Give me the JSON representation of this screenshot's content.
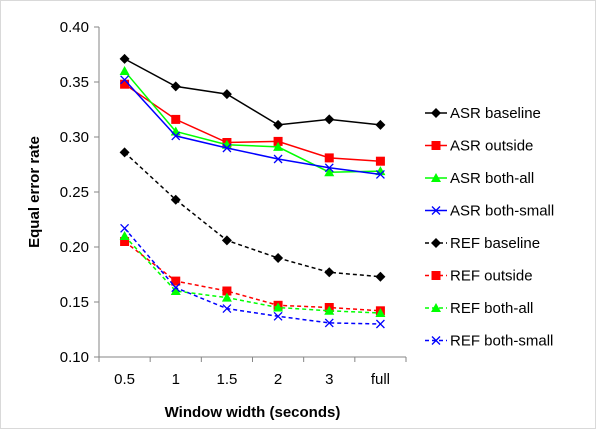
{
  "chart_data": {
    "type": "line",
    "xlabel": "Window width (seconds)",
    "ylabel": "Equal error rate",
    "categories": [
      "0.5",
      "1",
      "1.5",
      "2",
      "3",
      "full"
    ],
    "ylim": [
      0.1,
      0.4
    ],
    "yticks": [
      "0.10",
      "0.15",
      "0.20",
      "0.25",
      "0.30",
      "0.35",
      "0.40"
    ],
    "grid": false,
    "legend_position": "right",
    "series": [
      {
        "name": "ASR baseline",
        "values": [
          0.371,
          0.346,
          0.339,
          0.311,
          0.316,
          0.311
        ],
        "color": "#000000",
        "marker": "diamond",
        "dash": "solid"
      },
      {
        "name": "ASR outside",
        "values": [
          0.348,
          0.316,
          0.295,
          0.296,
          0.281,
          0.278
        ],
        "color": "#ff0000",
        "marker": "square",
        "dash": "solid"
      },
      {
        "name": "ASR both-all",
        "values": [
          0.36,
          0.305,
          0.293,
          0.291,
          0.268,
          0.269
        ],
        "color": "#00ff00",
        "marker": "triangle",
        "dash": "solid"
      },
      {
        "name": "ASR both-small",
        "values": [
          0.352,
          0.301,
          0.29,
          0.28,
          0.272,
          0.266
        ],
        "color": "#0000ff",
        "marker": "x",
        "dash": "solid"
      },
      {
        "name": "REF baseline",
        "values": [
          0.286,
          0.243,
          0.206,
          0.19,
          0.177,
          0.173
        ],
        "color": "#000000",
        "marker": "diamond",
        "dash": "dashed"
      },
      {
        "name": "REF outside",
        "values": [
          0.205,
          0.169,
          0.16,
          0.147,
          0.145,
          0.142
        ],
        "color": "#ff0000",
        "marker": "square",
        "dash": "dashed"
      },
      {
        "name": "REF both-all",
        "values": [
          0.21,
          0.16,
          0.154,
          0.145,
          0.142,
          0.14
        ],
        "color": "#00ff00",
        "marker": "triangle",
        "dash": "dashed"
      },
      {
        "name": "REF both-small",
        "values": [
          0.217,
          0.163,
          0.144,
          0.137,
          0.131,
          0.13
        ],
        "color": "#0000ff",
        "marker": "x",
        "dash": "dashed"
      }
    ]
  }
}
